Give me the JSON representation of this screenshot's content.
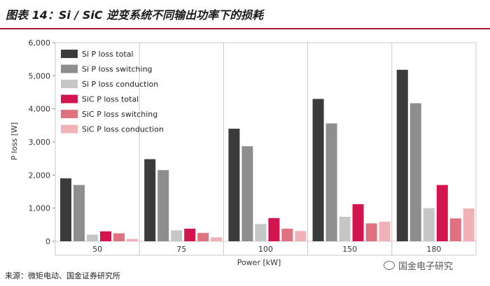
{
  "header": {
    "title": "图表 14：Si / SiC 逆变系统不同输出功率下的损耗"
  },
  "footer": {
    "source": "来源：微矩电动、国金证券研究所",
    "watermark": "国金电子研究"
  },
  "chart_data": {
    "type": "bar",
    "title": "",
    "xlabel": "Power [kW]",
    "ylabel": "P loss [W]",
    "ylim": [
      0,
      6000
    ],
    "yticks": [
      "0",
      "1,000",
      "2,000",
      "3,000",
      "4,000",
      "5,000",
      "6,000"
    ],
    "grid": false,
    "legend_position": "top-left",
    "categories": [
      "50",
      "75",
      "100",
      "150",
      "180"
    ],
    "series": [
      {
        "name": "Si P loss total",
        "color": "#3b3b3b",
        "values": [
          1900,
          2480,
          3400,
          4300,
          5180
        ]
      },
      {
        "name": "Si P loss switching",
        "color": "#8e8e8e",
        "values": [
          1700,
          2150,
          2870,
          3560,
          4170
        ]
      },
      {
        "name": "Si P loss conduction",
        "color": "#c6c6c6",
        "values": [
          200,
          330,
          520,
          740,
          1000
        ]
      },
      {
        "name": "SiC P loss total",
        "color": "#d3144e",
        "values": [
          300,
          380,
          700,
          1120,
          1700
        ]
      },
      {
        "name": "SiC P loss switching",
        "color": "#e0727f",
        "values": [
          240,
          250,
          380,
          540,
          690
        ]
      },
      {
        "name": "SiC P loss conduction",
        "color": "#f0b2b6",
        "values": [
          70,
          120,
          310,
          590,
          990
        ]
      }
    ]
  }
}
